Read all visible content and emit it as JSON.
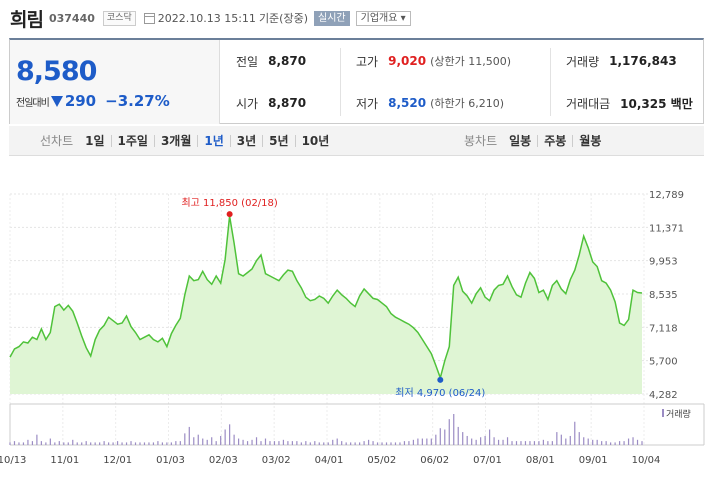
{
  "header": {
    "name": "희림",
    "code": "037440",
    "market": "코스닥",
    "datetime": "2022.10.13 15:11",
    "basis": "기준(장중)",
    "realtime": "실시간",
    "company_info": "기업개요 ▾"
  },
  "summary": {
    "price": "8,580",
    "change_label": "전일대비",
    "change": "290",
    "change_pct": "−3.27%",
    "prev_close_label": "전일",
    "prev_close": "8,870",
    "open_label": "시가",
    "open": "8,870",
    "high_label": "고가",
    "high": "9,020",
    "upper_limit": "(상한가 11,500)",
    "low_label": "저가",
    "low": "8,520",
    "lower_limit": "(하한가 6,210)",
    "volume_label": "거래량",
    "volume": "1,176,843",
    "amount_label": "거래대금",
    "amount": "10,325 백만"
  },
  "period": {
    "label": "선차트",
    "items": [
      "1일",
      "1주일",
      "3개월",
      "1년",
      "3년",
      "5년",
      "10년"
    ],
    "active": "1년",
    "candle_label": "봉차트",
    "candle_items": [
      "일봉",
      "주봉",
      "월봉"
    ]
  },
  "colors": {
    "line": "#4fc23a",
    "area": "#dff5d4",
    "up": "#e02020",
    "down": "#1e5cc8",
    "volume": "#9b8cc4"
  },
  "chart_data": {
    "type": "area",
    "y_ticks": [
      "12,789",
      "11,371",
      "9,953",
      "8,535",
      "7,118",
      "5,700",
      "4,282"
    ],
    "ylim": [
      4282,
      12789
    ],
    "x_ticks": [
      "10/13",
      "11/01",
      "12/01",
      "01/03",
      "02/03",
      "03/02",
      "04/01",
      "05/02",
      "06/02",
      "07/01",
      "08/01",
      "09/01",
      "10/04"
    ],
    "high_annotation": "최고 11,850 (02/18)",
    "low_annotation": "최저 4,970 (06/24)",
    "high_value": 11850,
    "low_value": 4970,
    "volume_legend": "거래량",
    "prices": [
      5850,
      6200,
      6300,
      6500,
      6450,
      6700,
      6600,
      7050,
      6600,
      6900,
      8000,
      8100,
      7850,
      8050,
      7800,
      7300,
      6750,
      6250,
      5900,
      6600,
      7000,
      7200,
      7550,
      7400,
      7250,
      7300,
      7600,
      7150,
      6900,
      6600,
      6700,
      6800,
      6600,
      6500,
      6650,
      6300,
      6850,
      7200,
      7500,
      8500,
      9300,
      9100,
      9150,
      9500,
      9150,
      8950,
      9300,
      9000,
      10000,
      11850,
      10700,
      9400,
      9300,
      9450,
      9600,
      9950,
      10200,
      9400,
      9300,
      9200,
      9100,
      9350,
      9550,
      9500,
      9100,
      8800,
      8400,
      8250,
      8300,
      8450,
      8350,
      8150,
      8450,
      8700,
      8500,
      8350,
      8150,
      8000,
      8450,
      8750,
      8550,
      8350,
      8300,
      8150,
      8000,
      7700,
      7550,
      7450,
      7350,
      7250,
      7100,
      6900,
      6600,
      6300,
      6000,
      5500,
      4970,
      5700,
      6300,
      8900,
      9250,
      8650,
      8450,
      8150,
      8550,
      8800,
      8400,
      8250,
      8700,
      8900,
      8950,
      9300,
      8850,
      8500,
      8400,
      9000,
      9450,
      9200,
      8600,
      8700,
      8300,
      8900,
      9100,
      8750,
      8550,
      9150,
      9550,
      10200,
      11000,
      10500,
      9900,
      9700,
      9100,
      9000,
      8700,
      8200,
      7300,
      7200,
      7450,
      8700,
      8600,
      8580
    ],
    "volumes": [
      2,
      3,
      2,
      2,
      4,
      3,
      8,
      3,
      2,
      5,
      2,
      3,
      2,
      2,
      4,
      2,
      2,
      3,
      2,
      2,
      2,
      3,
      2,
      2,
      3,
      2,
      2,
      3,
      2,
      2,
      2,
      2,
      2,
      3,
      2,
      2,
      2,
      3,
      3,
      9,
      14,
      6,
      8,
      5,
      4,
      6,
      3,
      7,
      12,
      16,
      8,
      5,
      4,
      3,
      4,
      6,
      3,
      5,
      3,
      3,
      3,
      4,
      3,
      3,
      3,
      2,
      3,
      2,
      3,
      2,
      2,
      2,
      4,
      5,
      3,
      2,
      2,
      2,
      2,
      3,
      4,
      3,
      2,
      2,
      2,
      2,
      2,
      2,
      3,
      3,
      4,
      5,
      5,
      5,
      5,
      8,
      13,
      12,
      20,
      24,
      14,
      10,
      7,
      5,
      4,
      6,
      7,
      12,
      6,
      4,
      4,
      6,
      3,
      3,
      3,
      3,
      3,
      3,
      3,
      4,
      3,
      3,
      10,
      8,
      5,
      7,
      18,
      10,
      6,
      5,
      4,
      4,
      3,
      3,
      2,
      2,
      3,
      3,
      5,
      6,
      4,
      3
    ]
  }
}
